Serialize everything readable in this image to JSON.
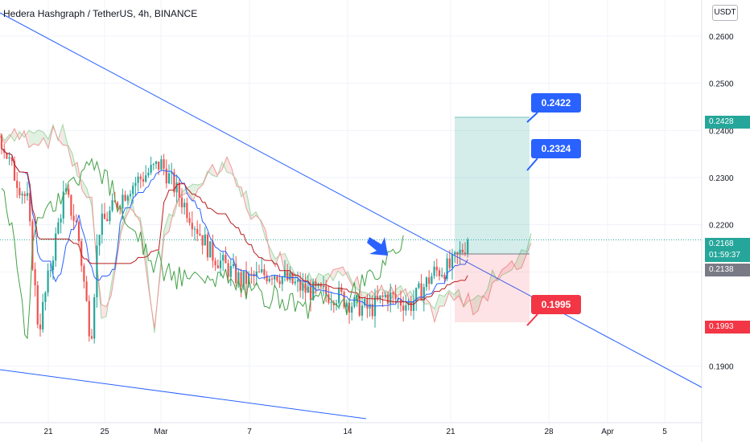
{
  "title": "Hedera Hashgraph / TetherUS, 4h, BINANCE",
  "currency_button": "USDT",
  "colors": {
    "bull": "#26a69a",
    "bear": "#ef5350",
    "trendline": "#2962ff",
    "conversion": "#2962ff",
    "base": "#b71c1c",
    "lagging": "#43a047",
    "cloud_bull": "#c8e6c9",
    "cloud_bear": "#ffcdd2",
    "target_zone": "#26a69a",
    "stop_zone": "#f23645",
    "callout_blue": "#2962ff"
  },
  "chart_data": {
    "type": "candlestick",
    "y_axis": {
      "ylim": [
        0.1857,
        0.2662
      ],
      "tick_labels": [
        "0.2600",
        "0.2500",
        "0.2400",
        "0.2300",
        "0.2200",
        "0.2100",
        "0.1900"
      ]
    },
    "x_axis": {
      "tick_labels": [
        "21",
        "25",
        "Mar",
        "7",
        "14",
        "21",
        "28",
        "Apr",
        "5"
      ],
      "note": "February 2022 through April, 4h candles"
    },
    "price_tags": [
      {
        "label": "0.2428",
        "kind": "target"
      },
      {
        "label": "0.2168",
        "kind": "last",
        "countdown": "01:59:37"
      },
      {
        "label": "0.2138",
        "kind": "entry"
      },
      {
        "label": "0.1993",
        "kind": "stop"
      }
    ],
    "callouts": [
      {
        "text": "0.2422",
        "kind": "target-1"
      },
      {
        "text": "0.2324",
        "kind": "target-2"
      },
      {
        "text": "0.1995",
        "kind": "stop"
      }
    ],
    "position": {
      "entry": 0.2138,
      "target": 0.2428,
      "stop": 0.1993
    },
    "ichimoku": true,
    "annotations": [
      "blue down-right arrow pointing at the descending trendline breakout"
    ],
    "grid": true
  }
}
